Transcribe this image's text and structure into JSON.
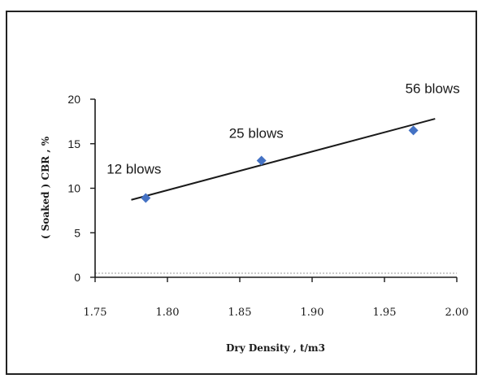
{
  "chart_data": {
    "type": "scatter",
    "xlabel": "Dry Density , t/m3",
    "ylabel": "( Soaked ) CBR , %",
    "xlim": [
      1.75,
      2.0
    ],
    "ylim": [
      0,
      20
    ],
    "x_ticks": [
      "1.75",
      "1.80",
      "1.85",
      "1.90",
      "1.95",
      "2.00"
    ],
    "y_ticks": [
      "0",
      "5",
      "10",
      "15",
      "20"
    ],
    "grid": false,
    "legend": "none",
    "series": [
      {
        "points": [
          {
            "x": 1.785,
            "y": 8.9,
            "label": "12 blows"
          },
          {
            "x": 1.865,
            "y": 13.1,
            "label": "25 blows"
          },
          {
            "x": 1.97,
            "y": 16.5,
            "label": "56 blows"
          }
        ],
        "marker_color": "#4472c4"
      }
    ],
    "trendline": {
      "x": [
        1.775,
        1.985
      ],
      "y": [
        8.7,
        17.8
      ],
      "color": "#1a1a1a"
    }
  }
}
